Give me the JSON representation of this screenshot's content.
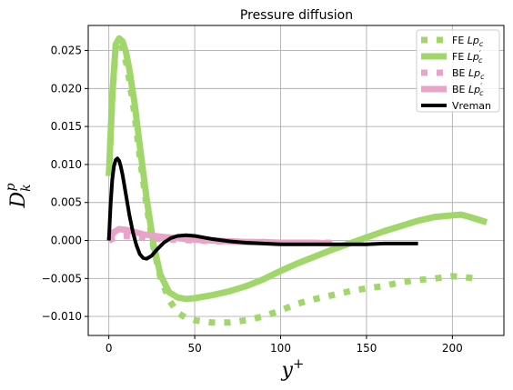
{
  "chart_data": {
    "type": "line",
    "title": "Pressure diffusion",
    "xlabel": "y",
    "xlabel_sup": "+",
    "ylabel": "D",
    "ylabel_sub": "k",
    "ylabel_sup": "p",
    "xlim": [
      -12,
      230
    ],
    "ylim": [
      -0.0125,
      0.0283
    ],
    "xticks": [
      0,
      50,
      100,
      150,
      200
    ],
    "xtick_labels": [
      "0",
      "50",
      "100",
      "150",
      "200"
    ],
    "yticks": [
      -0.01,
      -0.005,
      0.0,
      0.005,
      0.01,
      0.015,
      0.02,
      0.025
    ],
    "ytick_labels": [
      "−0.010",
      "−0.005",
      "0.000",
      "0.005",
      "0.010",
      "0.015",
      "0.020",
      "0.025"
    ],
    "grid": true,
    "legend_position": "top-right",
    "series": [
      {
        "name": "FE Lp",
        "legend_main": "FE ",
        "legend_var": "Lp",
        "legend_sub": "c",
        "legend_prime": "",
        "color": "#a1d76a",
        "style": "dotted",
        "width": 7,
        "x": [
          0,
          2,
          4,
          6,
          8,
          10,
          12,
          15,
          18,
          22,
          26,
          30,
          35,
          40,
          45,
          50,
          60,
          70,
          80,
          90,
          100,
          110,
          120,
          130,
          140,
          150,
          160,
          170,
          180,
          190,
          200,
          210,
          215
        ],
        "y": [
          0.0085,
          0.0185,
          0.0255,
          0.0262,
          0.0252,
          0.0235,
          0.021,
          0.0165,
          0.011,
          0.0045,
          -0.001,
          -0.0048,
          -0.0078,
          -0.0095,
          -0.0102,
          -0.0105,
          -0.0108,
          -0.0108,
          -0.0105,
          -0.01,
          -0.0092,
          -0.0083,
          -0.0077,
          -0.0072,
          -0.0067,
          -0.0063,
          -0.006,
          -0.0055,
          -0.0052,
          -0.005,
          -0.0047,
          -0.0049,
          -0.0051
        ]
      },
      {
        "name": "FE Lp'",
        "legend_main": "FE ",
        "legend_var": "Lp",
        "legend_sub": "c",
        "legend_prime": "′",
        "color": "#a1d76a",
        "style": "solid",
        "width": 7,
        "x": [
          0,
          2,
          4,
          6,
          8,
          10,
          12,
          15,
          18,
          22,
          26,
          30,
          35,
          40,
          45,
          50,
          60,
          70,
          80,
          90,
          100,
          110,
          120,
          130,
          140,
          150,
          160,
          170,
          180,
          190,
          200,
          205,
          210,
          220
        ],
        "y": [
          0.0085,
          0.019,
          0.0258,
          0.0266,
          0.0262,
          0.0248,
          0.0225,
          0.018,
          0.0125,
          0.0055,
          -0.0005,
          -0.0045,
          -0.0068,
          -0.0075,
          -0.0077,
          -0.0076,
          -0.0072,
          -0.0067,
          -0.006,
          -0.0051,
          -0.004,
          -0.003,
          -0.0021,
          -0.0012,
          -0.0004,
          0.0004,
          0.0012,
          0.0019,
          0.0026,
          0.0031,
          0.0033,
          0.0034,
          0.0031,
          0.0024
        ]
      },
      {
        "name": "BE Lp",
        "legend_main": "BE ",
        "legend_var": "Lp",
        "legend_sub": "c",
        "legend_prime": "",
        "color": "#e9a3c9",
        "style": "dotted",
        "width": 7,
        "x": [
          0,
          3,
          6,
          10,
          15,
          20,
          30,
          40,
          50,
          60,
          70,
          80,
          90,
          100,
          110,
          120,
          130
        ],
        "y": [
          0.0,
          0.0003,
          0.0005,
          0.0006,
          0.0005,
          0.0004,
          0.0002,
          0.0001,
          0.0,
          -0.0001,
          -0.0001,
          -0.0002,
          -0.0002,
          -0.0003,
          -0.0003,
          -0.0003,
          -0.0003
        ]
      },
      {
        "name": "BE Lp'",
        "legend_main": "BE ",
        "legend_var": "Lp",
        "legend_sub": "c",
        "legend_prime": "′",
        "color": "#e9a3c9",
        "style": "solid",
        "width": 7,
        "x": [
          0,
          3,
          6,
          10,
          15,
          20,
          30,
          40,
          50,
          60,
          70,
          80,
          90,
          100,
          110,
          120,
          130
        ],
        "y": [
          0.0,
          0.0011,
          0.0015,
          0.0014,
          0.0011,
          0.0008,
          0.0005,
          0.0003,
          0.0001,
          0.0,
          -0.0001,
          -0.0002,
          -0.0002,
          -0.0003,
          -0.0003,
          -0.0003,
          -0.0004
        ]
      },
      {
        "name": "Vreman",
        "legend_main": "Vreman",
        "legend_var": "",
        "legend_sub": "",
        "legend_prime": "",
        "color": "#000000",
        "style": "solid",
        "width": 4,
        "x": [
          0,
          1,
          2,
          3,
          4,
          5,
          6,
          7,
          8,
          10,
          12,
          14,
          16,
          18,
          20,
          22,
          25,
          28,
          32,
          36,
          40,
          45,
          50,
          55,
          60,
          70,
          80,
          90,
          100,
          110,
          120,
          130,
          140,
          150,
          160,
          170,
          180
        ],
        "y": [
          0.0,
          0.0045,
          0.008,
          0.0098,
          0.0106,
          0.0108,
          0.0105,
          0.0097,
          0.0086,
          0.006,
          0.0033,
          0.0011,
          -0.0006,
          -0.0018,
          -0.0023,
          -0.0024,
          -0.002,
          -0.0012,
          -0.0003,
          0.0003,
          0.0006,
          0.0007,
          0.0006,
          0.0004,
          0.0002,
          -0.0001,
          -0.0003,
          -0.0004,
          -0.0005,
          -0.0005,
          -0.0005,
          -0.0005,
          -0.0005,
          -0.0005,
          -0.0004,
          -0.0004,
          -0.0004
        ]
      }
    ]
  }
}
